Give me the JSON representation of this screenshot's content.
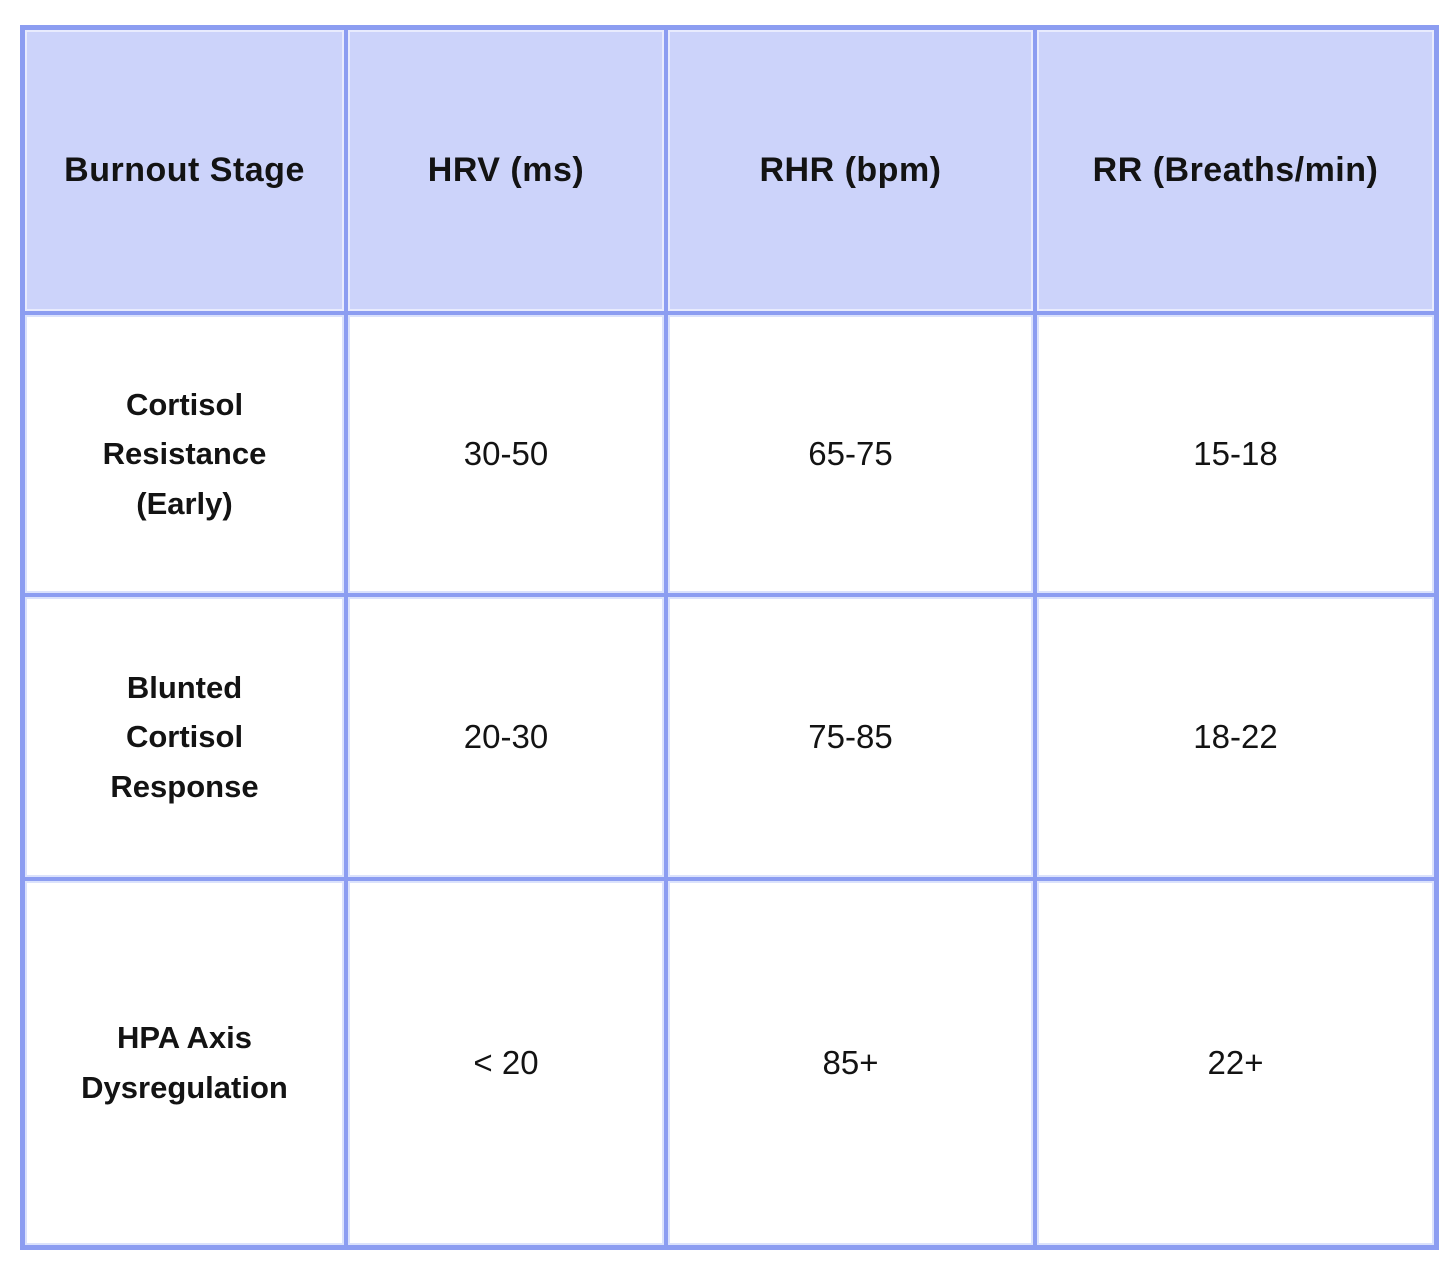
{
  "colors": {
    "border": "#8c9df1",
    "header_background": "#ccd3fa",
    "cell_background": "#ffffff",
    "text": "#131313"
  },
  "chart_data": {
    "type": "table",
    "title": "",
    "columns": [
      "Burnout Stage",
      "HRV (ms)",
      "RHR (bpm)",
      "RR (Breaths/min)"
    ],
    "rows": [
      [
        "Cortisol Resistance (Early)",
        "30-50",
        "65-75",
        "15-18"
      ],
      [
        "Blunted Cortisol Response",
        "20-30",
        "75-85",
        "18-22"
      ],
      [
        "HPA Axis Dysregulation",
        "< 20",
        "85+",
        "22+"
      ]
    ]
  }
}
